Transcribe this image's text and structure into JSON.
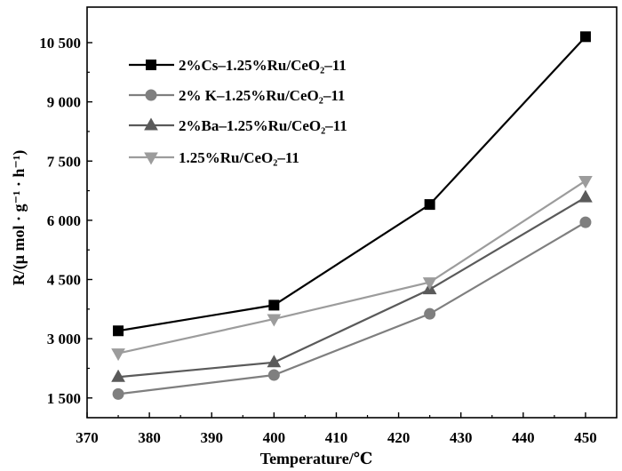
{
  "chart_data": {
    "type": "line",
    "title": "",
    "xlabel": "Temperature/℃",
    "ylabel": "R/(μ mol · g⁻¹ · h⁻¹)",
    "xlim": [
      370,
      455
    ],
    "ylim": [
      1000,
      11400
    ],
    "xticks": [
      370,
      380,
      390,
      400,
      410,
      420,
      430,
      440,
      450
    ],
    "xtick_labels": [
      "370",
      "380",
      "390",
      "400",
      "410",
      "420",
      "430",
      "440",
      "450"
    ],
    "yticks": [
      1500,
      3000,
      4500,
      6000,
      7500,
      9000,
      10500
    ],
    "ytick_labels": [
      "1 500",
      "3 000",
      "4 500",
      "6 000",
      "7 500",
      "9 000",
      "10 500"
    ],
    "grid": false,
    "legend_position": "top-left",
    "x": [
      375,
      400,
      425,
      450
    ],
    "series": [
      {
        "name": "2%Cs–1.25%Ru/CeO₂–11",
        "marker": "square",
        "color": "#000000",
        "values": [
          3200,
          3850,
          6400,
          10650
        ]
      },
      {
        "name": "2% K–1.25%Ru/CeO₂–11",
        "marker": "circle",
        "color": "#7f7f7f",
        "values": [
          1600,
          2080,
          3630,
          5950
        ]
      },
      {
        "name": "2%Ba–1.25%Ru/CeO₂–11",
        "marker": "triangle-up",
        "color": "#5a5a5a",
        "values": [
          2030,
          2400,
          4250,
          6580
        ]
      },
      {
        "name": "1.25%Ru/CeO₂–11",
        "marker": "triangle-down",
        "color": "#9c9c9c",
        "values": [
          2630,
          3500,
          4430,
          7000
        ]
      }
    ]
  }
}
